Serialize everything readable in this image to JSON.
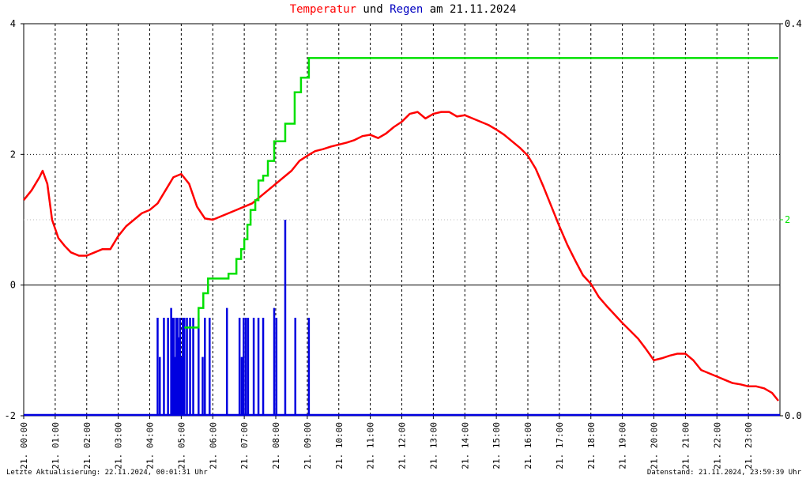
{
  "title": {
    "part1": "Temperatur",
    "part2": " und ",
    "part3": "Regen",
    "part4": " am 21.11.2024"
  },
  "footer": {
    "left": "Letzte Aktualisierung: 22.11.2024, 00:01:31 Uhr",
    "right": "Datenstand: 21.11.2024, 23:59:39 Uhr"
  },
  "colors": {
    "temperature": "#ff0000",
    "rain": "#0000e0",
    "rain_cumulative": "#00e000",
    "grid": "#000000",
    "zero_line": "#000000"
  },
  "chart_data": {
    "type": "line",
    "grid": true,
    "xlim": [
      0,
      24
    ],
    "x_tick_labels": [
      "21. 00:00",
      "21. 01:00",
      "21. 02:00",
      "21. 03:00",
      "21. 04:00",
      "21. 05:00",
      "21. 06:00",
      "21. 07:00",
      "21. 08:00",
      "21. 09:00",
      "21. 10:00",
      "21. 11:00",
      "21. 12:00",
      "21. 13:00",
      "21. 14:00",
      "21. 15:00",
      "21. 16:00",
      "21. 17:00",
      "21. 18:00",
      "21. 19:00",
      "21. 20:00",
      "21. 21:00",
      "21. 22:00",
      "21. 23:00"
    ],
    "y_left": {
      "lim": [
        -2,
        4
      ],
      "ticks": [
        "4",
        "2",
        "0",
        "-2"
      ],
      "tick_values": [
        4,
        2,
        0,
        -2
      ]
    },
    "y_right_rain": {
      "lim": [
        0,
        0.4
      ],
      "ticks": [
        "0.4",
        "0.0"
      ],
      "tick_values": [
        0.4,
        0.0
      ]
    },
    "y_right_cumulative": {
      "ticks": [
        "2"
      ],
      "tick_values": [
        2
      ]
    },
    "series": [
      {
        "key": "temperature",
        "axis": "left",
        "x": [
          0,
          0.25,
          0.5,
          0.6,
          0.75,
          0.9,
          1.1,
          1.3,
          1.5,
          1.75,
          2,
          2.25,
          2.5,
          2.75,
          3,
          3.25,
          3.5,
          3.75,
          4,
          4.25,
          4.5,
          4.75,
          5,
          5.25,
          5.5,
          5.75,
          6,
          6.25,
          6.5,
          6.75,
          7,
          7.25,
          7.5,
          7.75,
          8,
          8.25,
          8.5,
          8.75,
          9,
          9.25,
          9.5,
          9.75,
          10,
          10.25,
          10.5,
          10.75,
          11,
          11.25,
          11.5,
          11.75,
          12,
          12.25,
          12.5,
          12.75,
          13,
          13.25,
          13.5,
          13.75,
          14,
          14.25,
          14.5,
          14.75,
          15,
          15.25,
          15.5,
          15.75,
          16,
          16.25,
          16.5,
          16.75,
          17,
          17.25,
          17.5,
          17.75,
          18,
          18.25,
          18.5,
          18.75,
          19,
          19.25,
          19.5,
          19.75,
          20,
          20.25,
          20.5,
          20.75,
          21,
          21.25,
          21.5,
          21.75,
          22,
          22.25,
          22.5,
          22.75,
          23,
          23.25,
          23.5,
          23.75,
          23.95
        ],
        "y": [
          1.3,
          1.45,
          1.65,
          1.75,
          1.55,
          1.0,
          0.72,
          0.6,
          0.5,
          0.45,
          0.45,
          0.5,
          0.55,
          0.55,
          0.75,
          0.9,
          1.0,
          1.1,
          1.15,
          1.25,
          1.45,
          1.65,
          1.7,
          1.55,
          1.2,
          1.02,
          1.0,
          1.05,
          1.1,
          1.15,
          1.2,
          1.25,
          1.35,
          1.45,
          1.55,
          1.65,
          1.75,
          1.9,
          1.98,
          2.05,
          2.08,
          2.12,
          2.15,
          2.18,
          2.22,
          2.28,
          2.3,
          2.25,
          2.32,
          2.42,
          2.5,
          2.62,
          2.65,
          2.55,
          2.62,
          2.65,
          2.65,
          2.58,
          2.6,
          2.55,
          2.5,
          2.45,
          2.38,
          2.3,
          2.2,
          2.1,
          1.98,
          1.78,
          1.5,
          1.2,
          0.9,
          0.62,
          0.38,
          0.15,
          0.02,
          -0.18,
          -0.32,
          -0.45,
          -0.58,
          -0.7,
          -0.82,
          -0.98,
          -1.15,
          -1.12,
          -1.08,
          -1.05,
          -1.05,
          -1.15,
          -1.3,
          -1.35,
          -1.4,
          -1.45,
          -1.5,
          -1.52,
          -1.55,
          -1.55,
          -1.58,
          -1.65,
          -1.77
        ]
      },
      {
        "key": "rain",
        "axis": "right_rain",
        "type": "bars",
        "x": [
          4.25,
          4.32,
          4.45,
          4.58,
          4.68,
          4.72,
          4.76,
          4.8,
          4.84,
          4.88,
          4.92,
          4.96,
          5.0,
          5.05,
          5.1,
          5.18,
          5.28,
          5.38,
          5.55,
          5.68,
          5.75,
          5.9,
          6.45,
          6.85,
          6.92,
          6.98,
          7.05,
          7.12,
          7.3,
          7.45,
          7.6,
          7.95,
          8.02,
          8.3,
          8.62,
          9.05
        ],
        "y": [
          0.1,
          0.06,
          0.1,
          0.1,
          0.11,
          0.1,
          0.1,
          0.06,
          0.1,
          0.1,
          0.08,
          0.1,
          0.06,
          0.1,
          0.1,
          0.1,
          0.1,
          0.1,
          0.1,
          0.06,
          0.1,
          0.1,
          0.11,
          0.1,
          0.06,
          0.1,
          0.1,
          0.1,
          0.1,
          0.1,
          0.1,
          0.11,
          0.1,
          0.2,
          0.1,
          0.1
        ]
      },
      {
        "key": "rain_cumulative",
        "axis": "right_rain",
        "x": [
          5.1,
          5.4,
          5.55,
          5.7,
          5.85,
          6.0,
          6.25,
          6.5,
          6.75,
          6.9,
          7.0,
          7.1,
          7.2,
          7.35,
          7.45,
          7.6,
          7.75,
          7.95,
          8.1,
          8.3,
          8.6,
          8.8,
          9.05,
          10,
          11,
          12,
          13,
          14,
          15,
          16,
          17,
          18,
          19,
          20,
          21,
          22,
          23,
          23.95
        ],
        "y": [
          0.09,
          0.09,
          0.11,
          0.125,
          0.14,
          0.14,
          0.14,
          0.145,
          0.16,
          0.17,
          0.18,
          0.195,
          0.21,
          0.22,
          0.24,
          0.245,
          0.26,
          0.28,
          0.28,
          0.298,
          0.33,
          0.345,
          0.365,
          0.365,
          0.365,
          0.365,
          0.365,
          0.365,
          0.365,
          0.365,
          0.365,
          0.365,
          0.365,
          0.365,
          0.365,
          0.365,
          0.365,
          0.365
        ]
      }
    ]
  }
}
